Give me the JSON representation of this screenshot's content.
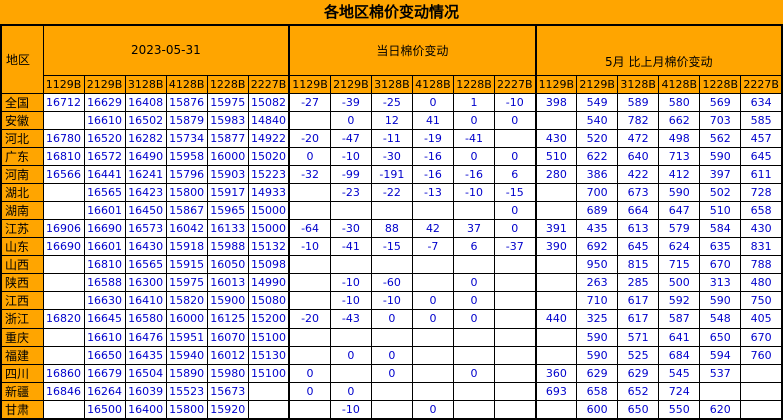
{
  "title": "各地区棉价变动情况",
  "colors": {
    "background": "#FFA500",
    "cell_background": "#FFFFFF",
    "value_text": "#0000CC",
    "header_text": "#000000",
    "border": "#000000"
  },
  "table": {
    "region_header": "地区",
    "groups": [
      {
        "label": "2023-05-31"
      },
      {
        "label": "当日棉价变动"
      },
      {
        "label": "5月 比上月棉价变动"
      }
    ],
    "subcolumns": [
      "1129B",
      "2129B",
      "3128B",
      "4128B",
      "1228B",
      "2227B"
    ],
    "rows": [
      {
        "region": "全国",
        "date": [
          "16712",
          "16629",
          "16408",
          "15876",
          "15975",
          "15082"
        ],
        "daily": [
          "-27",
          "-39",
          "-25",
          "0",
          "1",
          "-10"
        ],
        "month": [
          "398",
          "549",
          "589",
          "580",
          "569",
          "634"
        ]
      },
      {
        "region": "安徽",
        "date": [
          "",
          "16610",
          "16502",
          "15879",
          "15983",
          "14840"
        ],
        "daily": [
          "",
          "0",
          "12",
          "41",
          "0",
          "0"
        ],
        "month": [
          "",
          "540",
          "782",
          "662",
          "703",
          "585"
        ]
      },
      {
        "region": "河北",
        "date": [
          "16780",
          "16520",
          "16282",
          "15734",
          "15877",
          "14922"
        ],
        "daily": [
          "-20",
          "-47",
          "-11",
          "-19",
          "-41",
          ""
        ],
        "month": [
          "430",
          "520",
          "472",
          "498",
          "562",
          "457"
        ]
      },
      {
        "region": "广东",
        "date": [
          "16810",
          "16572",
          "16490",
          "15958",
          "16000",
          "15020"
        ],
        "daily": [
          "0",
          "-10",
          "-30",
          "-16",
          "0",
          "0"
        ],
        "month": [
          "510",
          "622",
          "640",
          "713",
          "590",
          "645"
        ]
      },
      {
        "region": "河南",
        "date": [
          "16566",
          "16441",
          "16241",
          "15796",
          "15903",
          "15223"
        ],
        "daily": [
          "-32",
          "-99",
          "-191",
          "-16",
          "-16",
          "6"
        ],
        "month": [
          "280",
          "386",
          "422",
          "412",
          "397",
          "611"
        ]
      },
      {
        "region": "湖北",
        "date": [
          "",
          "16565",
          "16423",
          "15800",
          "15917",
          "14933"
        ],
        "daily": [
          "",
          "-23",
          "-22",
          "-13",
          "-10",
          "-15"
        ],
        "month": [
          "",
          "700",
          "673",
          "590",
          "502",
          "728"
        ]
      },
      {
        "region": "湖南",
        "date": [
          "",
          "16601",
          "16450",
          "15867",
          "15965",
          "15000"
        ],
        "daily": [
          "",
          "",
          "",
          "",
          "",
          "0"
        ],
        "month": [
          "",
          "689",
          "664",
          "647",
          "510",
          "658"
        ]
      },
      {
        "region": "江苏",
        "date": [
          "16906",
          "16690",
          "16573",
          "16042",
          "16133",
          "15000"
        ],
        "daily": [
          "-64",
          "-30",
          "88",
          "42",
          "37",
          "0"
        ],
        "month": [
          "391",
          "435",
          "613",
          "579",
          "584",
          "430"
        ]
      },
      {
        "region": "山东",
        "date": [
          "16690",
          "16601",
          "16430",
          "15918",
          "15988",
          "15132"
        ],
        "daily": [
          "-10",
          "-41",
          "-15",
          "-7",
          "6",
          "-37"
        ],
        "month": [
          "390",
          "692",
          "645",
          "624",
          "635",
          "831"
        ]
      },
      {
        "region": "山西",
        "date": [
          "",
          "16810",
          "16565",
          "15915",
          "16050",
          "15098"
        ],
        "daily": [
          "",
          "",
          "",
          "",
          "",
          ""
        ],
        "month": [
          "",
          "950",
          "815",
          "715",
          "670",
          "788"
        ]
      },
      {
        "region": "陕西",
        "date": [
          "",
          "16588",
          "16300",
          "15975",
          "16013",
          "14990"
        ],
        "daily": [
          "",
          "-10",
          "-60",
          "",
          "0",
          ""
        ],
        "month": [
          "",
          "263",
          "285",
          "500",
          "313",
          "480"
        ]
      },
      {
        "region": "江西",
        "date": [
          "",
          "16630",
          "16410",
          "15820",
          "15900",
          "15080"
        ],
        "daily": [
          "",
          "-10",
          "-10",
          "0",
          "0",
          ""
        ],
        "month": [
          "",
          "710",
          "617",
          "592",
          "590",
          "750"
        ]
      },
      {
        "region": "浙江",
        "date": [
          "16820",
          "16645",
          "16580",
          "16000",
          "16125",
          "15200"
        ],
        "daily": [
          "-20",
          "-43",
          "0",
          "0",
          "0",
          ""
        ],
        "month": [
          "440",
          "325",
          "617",
          "587",
          "548",
          "405"
        ]
      },
      {
        "region": "重庆",
        "date": [
          "",
          "16610",
          "16476",
          "15951",
          "16070",
          "15100"
        ],
        "daily": [
          "",
          "",
          "",
          "",
          "",
          ""
        ],
        "month": [
          "",
          "590",
          "571",
          "641",
          "650",
          "670"
        ]
      },
      {
        "region": "福建",
        "date": [
          "",
          "16650",
          "16435",
          "15940",
          "16012",
          "15130"
        ],
        "daily": [
          "",
          "0",
          "0",
          "",
          "",
          ""
        ],
        "month": [
          "",
          "590",
          "525",
          "684",
          "594",
          "760"
        ]
      },
      {
        "region": "四川",
        "date": [
          "16860",
          "16679",
          "16504",
          "15890",
          "15980",
          "15100"
        ],
        "daily": [
          "0",
          "",
          "0",
          "",
          "0",
          ""
        ],
        "month": [
          "360",
          "629",
          "629",
          "545",
          "537",
          ""
        ]
      },
      {
        "region": "新疆",
        "date": [
          "16846",
          "16264",
          "16039",
          "15523",
          "15673",
          ""
        ],
        "daily": [
          "0",
          "0",
          "",
          "",
          "",
          ""
        ],
        "month": [
          "693",
          "658",
          "652",
          "724",
          "",
          ""
        ]
      },
      {
        "region": "甘肃",
        "date": [
          "",
          "16500",
          "16400",
          "15800",
          "15920",
          ""
        ],
        "daily": [
          "",
          "-10",
          "",
          "0",
          "",
          ""
        ],
        "month": [
          "",
          "600",
          "650",
          "550",
          "620",
          ""
        ]
      }
    ]
  }
}
